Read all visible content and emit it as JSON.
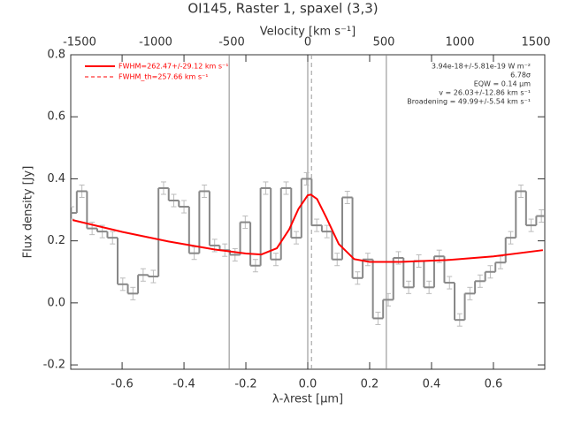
{
  "chart_data": {
    "type": "spectrum",
    "title": "OI145, Raster 1, spaxel (3,3)",
    "x_label": "λ-λrest [μm]",
    "x2_label": "Velocity [km s⁻¹]",
    "y_label": "Flux density [Jy]",
    "xlim": [
      -0.766,
      0.766
    ],
    "x2lim": [
      -1558,
      1558
    ],
    "ylim": [
      -0.214,
      0.8
    ],
    "xticks": [
      -0.6,
      -0.4,
      -0.2,
      {
        "value": 0,
        "label": "0.0"
      },
      0.2,
      0.4,
      0.6
    ],
    "x2ticks": [
      -1500,
      -1000,
      -500,
      0,
      500,
      1000,
      1500
    ],
    "yticks": [
      -0.2,
      {
        "value": 0,
        "label": "0.0"
      },
      0.2,
      0.4,
      0.6,
      0.8
    ],
    "bin_width": 0.033,
    "x": [
      -0.763,
      -0.73,
      -0.697,
      -0.664,
      -0.631,
      -0.598,
      -0.565,
      -0.532,
      -0.499,
      -0.466,
      -0.433,
      -0.4,
      -0.367,
      -0.334,
      -0.301,
      -0.268,
      -0.235,
      -0.202,
      -0.169,
      -0.136,
      -0.103,
      -0.07,
      -0.037,
      -0.004,
      0.029,
      0.062,
      0.095,
      0.128,
      0.161,
      0.194,
      0.227,
      0.26,
      0.293,
      0.326,
      0.359,
      0.392,
      0.425,
      0.458,
      0.491,
      0.524,
      0.557,
      0.59,
      0.623,
      0.656,
      0.689,
      0.722,
      0.755
    ],
    "values": [
      0.29,
      0.36,
      0.24,
      0.23,
      0.21,
      0.06,
      0.03,
      0.09,
      0.085,
      0.37,
      0.33,
      0.31,
      0.16,
      0.36,
      0.185,
      0.17,
      0.155,
      0.26,
      0.12,
      0.37,
      0.14,
      0.37,
      0.21,
      0.4,
      0.25,
      0.23,
      0.14,
      0.34,
      0.08,
      0.14,
      -0.05,
      0.01,
      0.145,
      0.05,
      0.135,
      0.05,
      0.15,
      0.065,
      -0.055,
      0.03,
      0.07,
      0.1,
      0.13,
      0.21,
      0.36,
      0.25,
      0.28
    ],
    "errors": [
      0.02,
      0.02,
      0.02,
      0.02,
      0.02,
      0.02,
      0.02,
      0.02,
      0.02,
      0.02,
      0.02,
      0.02,
      0.02,
      0.02,
      0.02,
      0.02,
      0.02,
      0.02,
      0.02,
      0.02,
      0.02,
      0.02,
      0.02,
      0.02,
      0.02,
      0.02,
      0.02,
      0.02,
      0.02,
      0.02,
      0.02,
      0.02,
      0.02,
      0.02,
      0.02,
      0.02,
      0.02,
      0.02,
      0.02,
      0.02,
      0.02,
      0.02,
      0.02,
      0.02,
      0.02,
      0.02,
      0.02
    ],
    "color": "#888888",
    "fit": {
      "name": "FWHM=262.47+/-29.12 km s⁻¹",
      "color": "#ff0000",
      "x": [
        -0.76,
        -0.6,
        -0.45,
        -0.3,
        -0.2,
        -0.15,
        -0.1,
        -0.06,
        -0.03,
        0,
        0.01,
        0.03,
        0.06,
        0.1,
        0.15,
        0.2,
        0.3,
        0.45,
        0.6,
        0.76
      ],
      "values": [
        0.267,
        0.229,
        0.198,
        0.172,
        0.159,
        0.156,
        0.176,
        0.237,
        0.303,
        0.347,
        0.349,
        0.335,
        0.275,
        0.19,
        0.141,
        0.132,
        0.132,
        0.138,
        0.15,
        0.17
      ]
    },
    "theory_legend": {
      "name": "FWHM_th=257.66 km s⁻¹",
      "color": "#ff0000"
    },
    "vlines": [
      -0.254,
      0,
      0.254
    ],
    "center_line": 0.012,
    "annotations": [
      "3.94e-18+/-5.81e-19 W m⁻²",
      "6.78σ",
      "EQW = 0.14 μm",
      "v = 26.03+/-12.86 km s⁻¹",
      "Broadening = 49.99+/-5.54 km s⁻¹"
    ]
  }
}
